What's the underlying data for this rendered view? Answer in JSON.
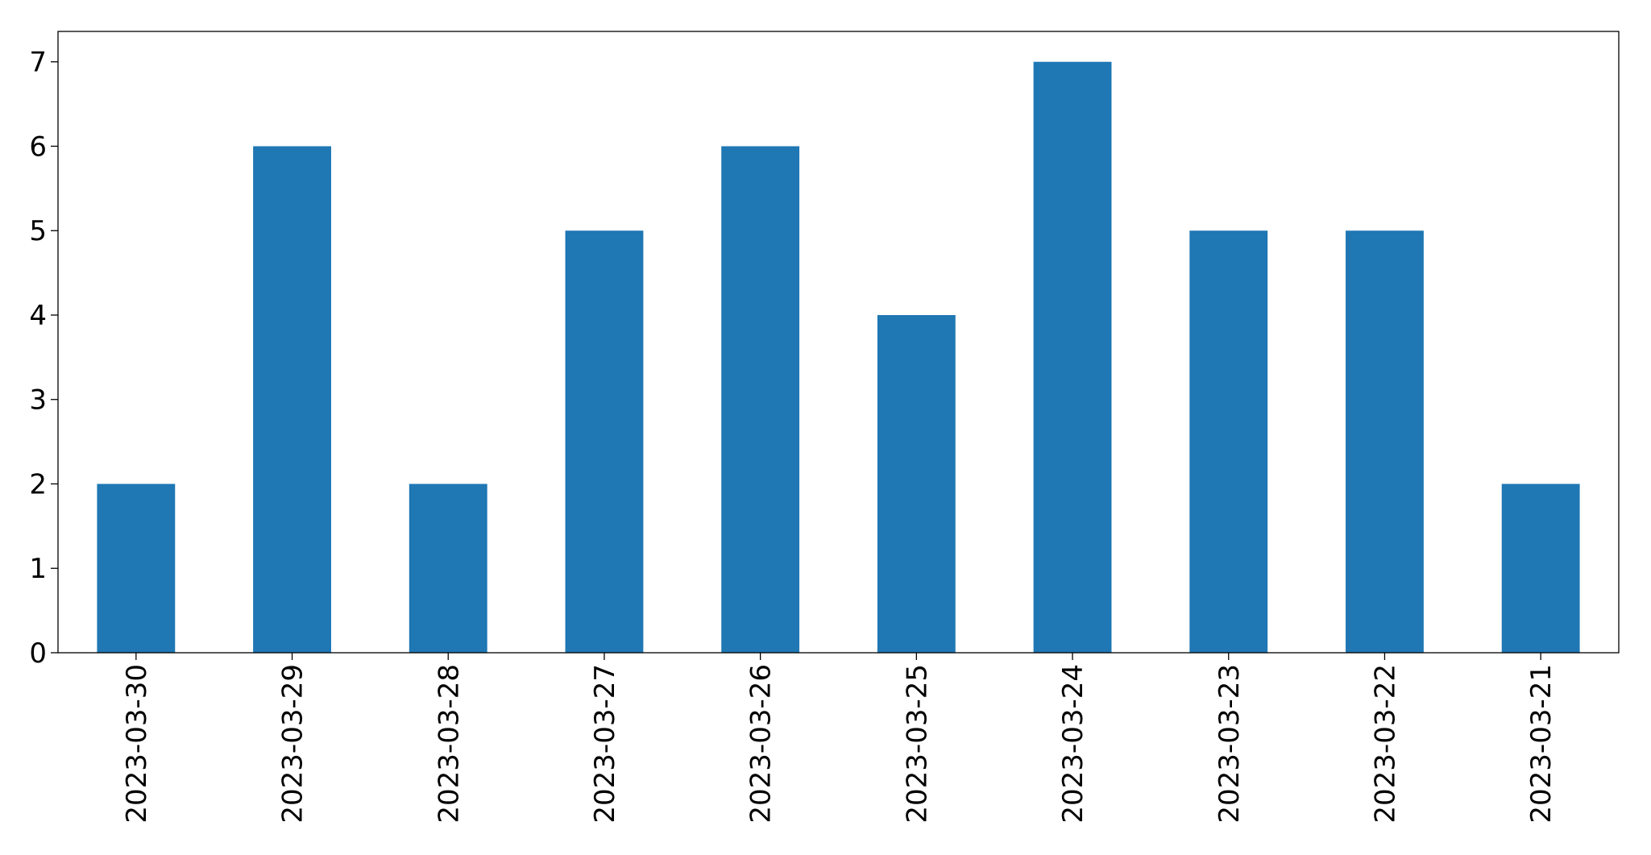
{
  "chart_data": {
    "type": "bar",
    "categories": [
      "2023-03-30",
      "2023-03-29",
      "2023-03-28",
      "2023-03-27",
      "2023-03-26",
      "2023-03-25",
      "2023-03-24",
      "2023-03-23",
      "2023-03-22",
      "2023-03-21"
    ],
    "values": [
      2,
      6,
      2,
      5,
      6,
      4,
      7,
      5,
      5,
      2
    ],
    "color": "#1f77b4",
    "ylim": [
      0,
      7.36
    ],
    "yticks": [
      0,
      1,
      2,
      3,
      4,
      5,
      6,
      7
    ],
    "grid": false
  }
}
